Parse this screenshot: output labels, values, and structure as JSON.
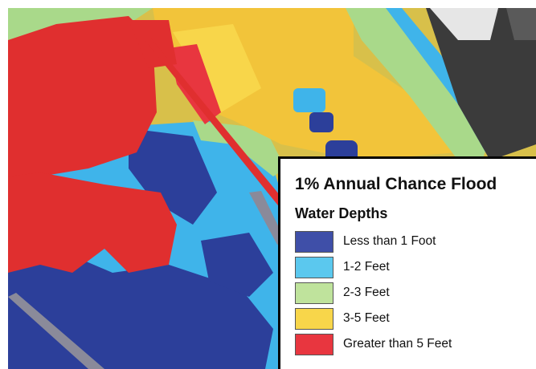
{
  "legend": {
    "title": "1% Annual Chance Flood",
    "subtitle": "Water Depths",
    "items": [
      {
        "label": "Less than 1 Foot",
        "color": "#3f4fa8"
      },
      {
        "label": "1-2 Feet",
        "color": "#5bc8ee"
      },
      {
        "label": "2-3 Feet",
        "color": "#bfe39c"
      },
      {
        "label": "3-5 Feet",
        "color": "#f8d64a"
      },
      {
        "label": "Greater than 5 Feet",
        "color": "#e8363f"
      }
    ]
  },
  "colors": {
    "deep_red": "#e02f2f",
    "light_blue": "#3fb4ea",
    "navy": "#2c3f9a",
    "yellow": "#f2c43a",
    "green": "#a9d98a",
    "gray_roof": "#3b3b3b"
  }
}
